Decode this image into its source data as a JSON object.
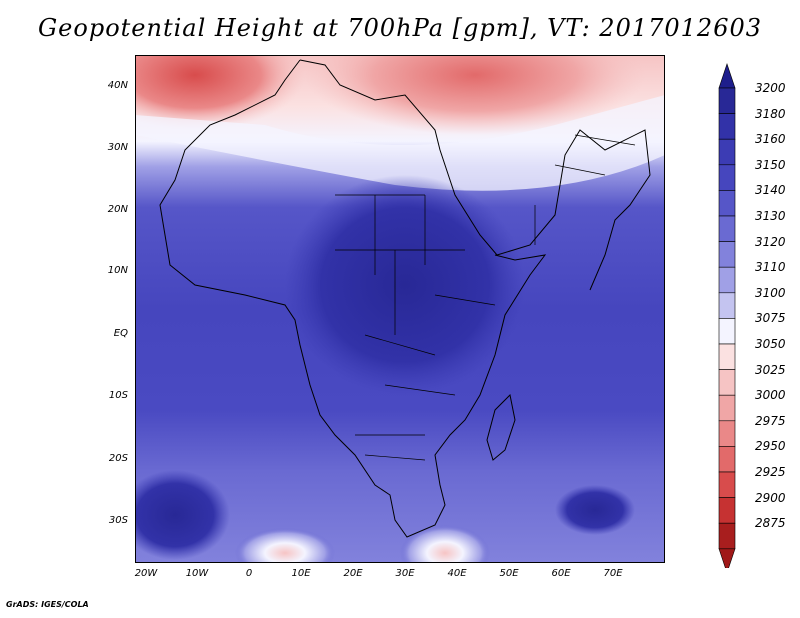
{
  "title": "Geopotential Height at 700hPa [gpm], VT: 2017012603",
  "footer": "GrADS: IGES/COLA",
  "map": {
    "region": "Africa, Middle East, Arabian Sea and western India",
    "lon_range": [
      -25,
      80
    ],
    "lat_range": [
      -38,
      45
    ],
    "lat_ticks": [
      "40N",
      "30N",
      "20N",
      "10N",
      "EQ",
      "10S",
      "20S",
      "30S"
    ],
    "lon_ticks": [
      "20W",
      "10W",
      "0",
      "10E",
      "20E",
      "30E",
      "40E",
      "50E",
      "60E",
      "70E"
    ]
  },
  "colorbar": {
    "levels": [
      "3200",
      "3180",
      "3160",
      "3150",
      "3140",
      "3130",
      "3120",
      "3110",
      "3100",
      "3075",
      "3050",
      "3025",
      "3000",
      "2975",
      "2950",
      "2925",
      "2900",
      "2875"
    ],
    "colors": [
      "#282896",
      "#3232a8",
      "#3c3cb4",
      "#4646be",
      "#5656c8",
      "#6a6ad2",
      "#8282dc",
      "#a0a0e6",
      "#c4c4f0",
      "#f4f4ff",
      "#fbe1e1",
      "#f6c4c4",
      "#f0a6a6",
      "#ea8888",
      "#e26a6a",
      "#d84c4c",
      "#c63232",
      "#a81e1e"
    ],
    "top_color": "#1e1e8c",
    "bottom_color": "#a01818"
  }
}
